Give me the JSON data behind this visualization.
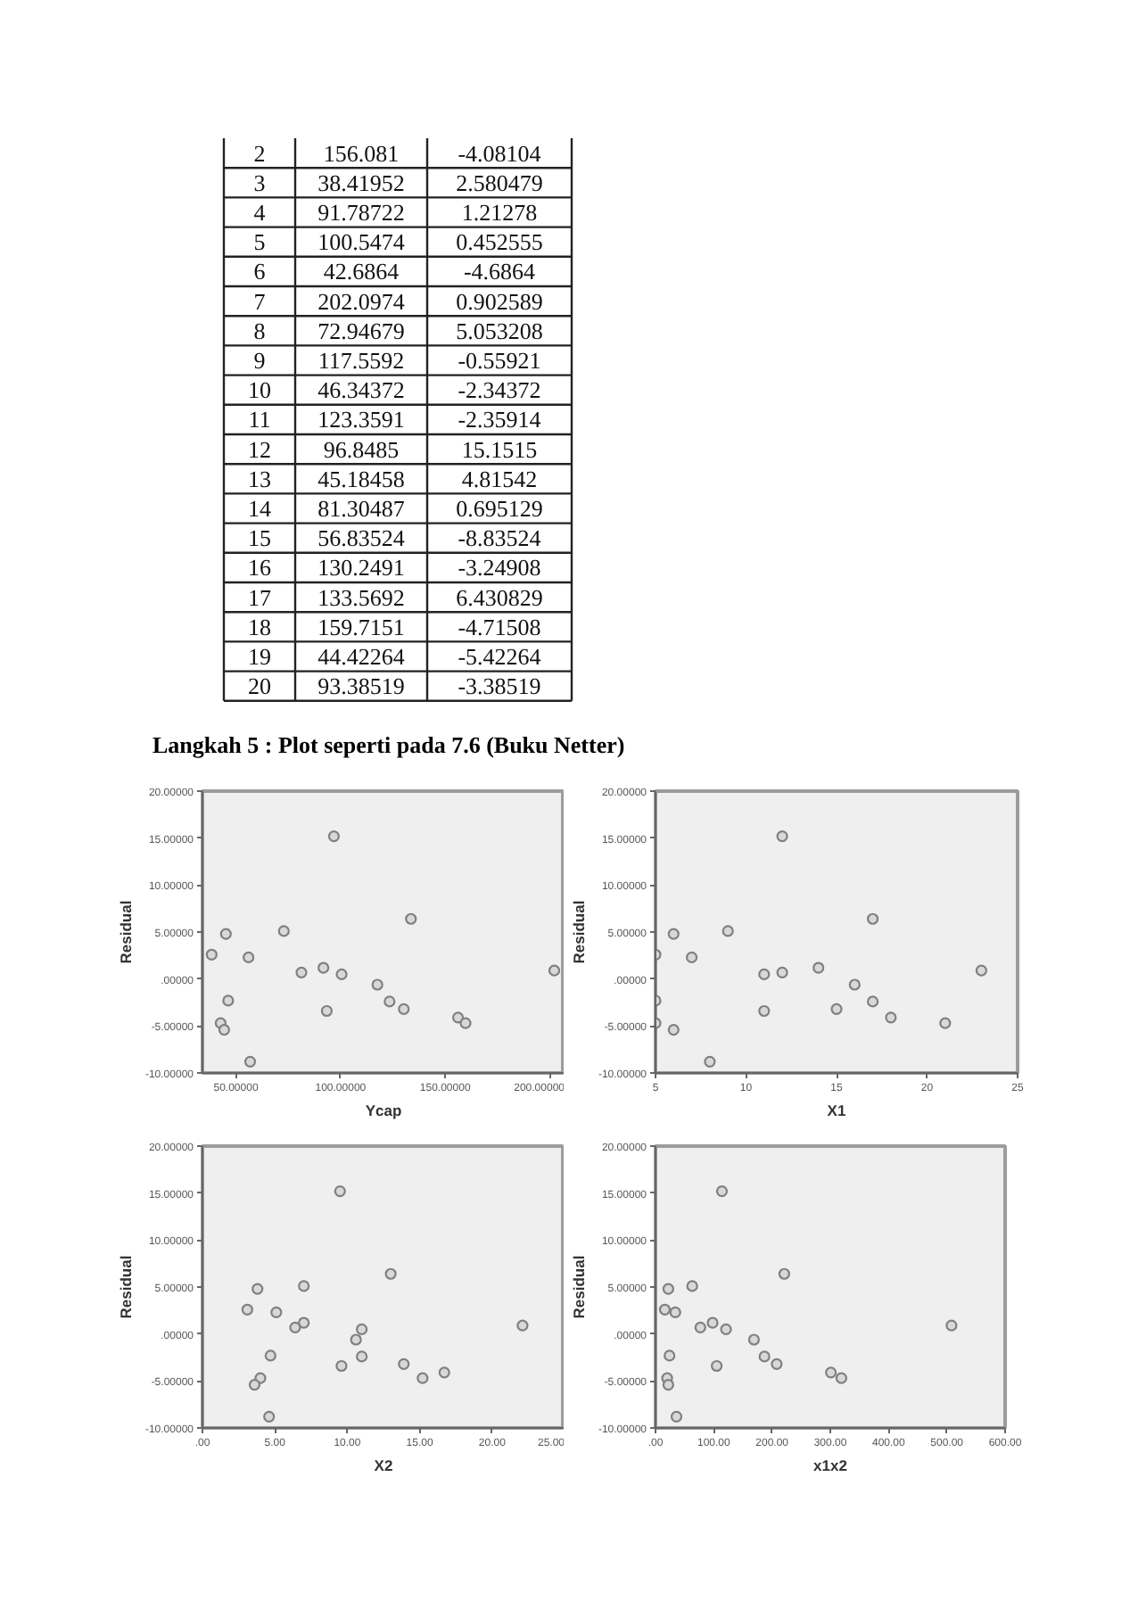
{
  "chart_data": [
    {
      "type": "heatmap",
      "categories": [
        null,
        null
      ],
      "y_categories": [
        "2",
        "3",
        "4",
        "5",
        "6",
        "7",
        "8",
        "9",
        "10",
        "11",
        "12",
        "13",
        "14",
        "15",
        "16",
        "17",
        "18",
        "19",
        "20"
      ],
      "cells": [
        [
          156.081,
          -4.08104
        ],
        [
          38.41952,
          2.580479
        ],
        [
          91.78722,
          1.21278
        ],
        [
          100.5474,
          0.452555
        ],
        [
          42.6864,
          -4.6864
        ],
        [
          202.0974,
          0.902589
        ],
        [
          72.94679,
          5.053208
        ],
        [
          117.5592,
          -0.55921
        ],
        [
          46.34372,
          -2.34372
        ],
        [
          123.3591,
          -2.35914
        ],
        [
          96.8485,
          15.1515
        ],
        [
          45.18458,
          4.81542
        ],
        [
          81.30487,
          0.695129
        ],
        [
          56.83524,
          -8.83524
        ],
        [
          130.2491,
          -3.24908
        ],
        [
          133.5692,
          6.430829
        ],
        [
          159.7151,
          -4.71508
        ],
        [
          44.42264,
          -5.42264
        ],
        [
          93.38519,
          -3.38519
        ]
      ],
      "data_labels": true
    },
    {
      "type": "scatter",
      "title": "Langkah  5 : Plot  seperti pada 7.6 (Buku Netter)",
      "xlabel": "Ycap",
      "ylabel": "Residual",
      "marker": "circle",
      "x": [
        56,
        156.1,
        38.4,
        91.8,
        100.5,
        42.7,
        202.1,
        72.9,
        117.6,
        46.3,
        123.4,
        96.8,
        45.2,
        81.3,
        56.8,
        130.2,
        133.6,
        159.7,
        44.4,
        93.4
      ],
      "series": [
        {
          "color": "#808080",
          "values": [
            2.3,
            -4.1,
            2.6,
            1.2,
            0.5,
            -4.7,
            0.9,
            5.1,
            -0.6,
            -2.3,
            -2.4,
            15.2,
            4.8,
            0.7,
            -8.8,
            -3.2,
            6.4,
            -4.7,
            -5.4,
            -3.4
          ]
        }
      ],
      "xlim": [
        34,
        207
      ],
      "ylim": [
        -10,
        20
      ],
      "xticks": [
        {
          "value": 50,
          "label": "50.00000"
        },
        {
          "value": 100,
          "label": "100.00000"
        },
        {
          "value": 150,
          "label": "150.00000"
        },
        {
          "value": 200,
          "label": "200.00000"
        }
      ],
      "yticks": [
        {
          "value": -10,
          "label": "-10.00000"
        },
        {
          "value": -5,
          "label": "-5.00000"
        },
        {
          "value": 0,
          "label": ".00000"
        },
        {
          "value": 5,
          "label": "5.00000"
        },
        {
          "value": 10,
          "label": "10.00000"
        },
        {
          "value": 15,
          "label": "15.00000"
        },
        {
          "value": 20,
          "label": "20.00000"
        }
      ]
    },
    {
      "type": "scatter",
      "xlabel": "X1",
      "ylabel": "Residual",
      "marker": "circle",
      "x": [
        7,
        18,
        5,
        14,
        11,
        5,
        23,
        9,
        16,
        5,
        17,
        12,
        6,
        12,
        8,
        15,
        17,
        21,
        6,
        11
      ],
      "series": [
        {
          "color": "#808080",
          "values": [
            2.3,
            -4.1,
            2.6,
            1.2,
            0.5,
            -4.7,
            0.9,
            5.1,
            -0.6,
            -2.3,
            -2.4,
            15.2,
            4.8,
            0.7,
            -8.8,
            -3.2,
            6.4,
            -4.7,
            -5.4,
            -3.4
          ]
        }
      ],
      "xlim": [
        5,
        25
      ],
      "ylim": [
        -10,
        20
      ],
      "xticks": [
        5,
        10,
        15,
        20,
        25
      ],
      "yticks": [
        {
          "value": -10,
          "label": "-10.00000"
        },
        {
          "value": -5,
          "label": "-5.00000"
        },
        {
          "value": 0,
          "label": ".00000"
        },
        {
          "value": 5,
          "label": "5.00000"
        },
        {
          "value": 10,
          "label": "10.00000"
        },
        {
          "value": 15,
          "label": "15.00000"
        },
        {
          "value": 20,
          "label": "20.00000"
        }
      ]
    },
    {
      "type": "scatter",
      "xlabel": "X2",
      "ylabel": "Residual",
      "marker": "circle",
      "x": [
        5.1,
        16.7,
        3.1,
        7.0,
        11.0,
        4.0,
        22.1,
        7.0,
        10.6,
        4.7,
        11.0,
        9.5,
        3.8,
        6.4,
        4.6,
        13.9,
        13.0,
        15.2,
        3.6,
        9.6
      ],
      "series": [
        {
          "color": "#808080",
          "values": [
            2.3,
            -4.1,
            2.6,
            1.2,
            0.5,
            -4.7,
            0.9,
            5.1,
            -0.6,
            -2.3,
            -2.4,
            15.2,
            4.8,
            0.7,
            -8.8,
            -3.2,
            6.4,
            -4.7,
            -5.4,
            -3.4
          ]
        }
      ],
      "xlim": [
        0,
        25
      ],
      "ylim": [
        -10,
        20
      ],
      "xticks": [
        {
          "value": 0,
          "label": ".00"
        },
        {
          "value": 5,
          "label": "5.00"
        },
        {
          "value": 10,
          "label": "10.00"
        },
        {
          "value": 15,
          "label": "15.00"
        },
        {
          "value": 20,
          "label": "20.00"
        },
        {
          "value": 25,
          "label": "25.00"
        }
      ],
      "yticks": [
        {
          "value": -10,
          "label": "-10.00000"
        },
        {
          "value": -5,
          "label": "-5.00000"
        },
        {
          "value": 0,
          "label": ".00000"
        },
        {
          "value": 5,
          "label": "5.00000"
        },
        {
          "value": 10,
          "label": "10.00000"
        },
        {
          "value": 15,
          "label": "15.00000"
        },
        {
          "value": 20,
          "label": "20.00000"
        }
      ]
    },
    {
      "type": "scatter",
      "xlabel": "x1x2",
      "ylabel": "Residual",
      "marker": "circle",
      "x": [
        34,
        301,
        16,
        98,
        121,
        20,
        508,
        63,
        169,
        24,
        187,
        114,
        22,
        77,
        36,
        208,
        221,
        319,
        22,
        105
      ],
      "series": [
        {
          "color": "#808080",
          "values": [
            2.3,
            -4.1,
            2.6,
            1.2,
            0.5,
            -4.7,
            0.9,
            5.1,
            -0.6,
            -2.3,
            -2.4,
            15.2,
            4.8,
            0.7,
            -8.8,
            -3.2,
            6.4,
            -4.7,
            -5.4,
            -3.4
          ]
        }
      ],
      "xlim": [
        0,
        600
      ],
      "ylim": [
        -10,
        20
      ],
      "xticks": [
        {
          "value": 0,
          "label": ".00"
        },
        {
          "value": 100,
          "label": "100.00"
        },
        {
          "value": 200,
          "label": "200.00"
        },
        {
          "value": 300,
          "label": "300.00"
        },
        {
          "value": 400,
          "label": "400.00"
        },
        {
          "value": 500,
          "label": "500.00"
        },
        {
          "value": 600,
          "label": "600.00"
        }
      ],
      "yticks": [
        {
          "value": -10,
          "label": "-10.00000"
        },
        {
          "value": -5,
          "label": "-5.00000"
        },
        {
          "value": 0,
          "label": ".00000"
        },
        {
          "value": 5,
          "label": "5.00000"
        },
        {
          "value": 10,
          "label": "10.00000"
        },
        {
          "value": 15,
          "label": "15.00000"
        },
        {
          "value": 20,
          "label": "20.00000"
        }
      ]
    }
  ]
}
